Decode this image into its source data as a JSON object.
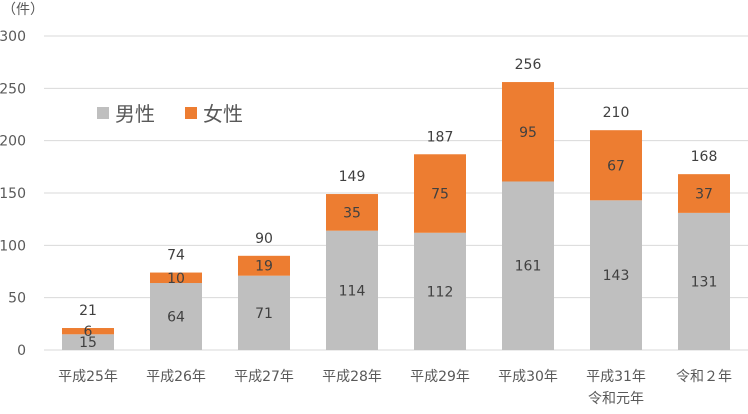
{
  "chart_data": {
    "type": "bar",
    "stacked": true,
    "y_unit_label": "（件）",
    "categories": [
      [
        "平成25年"
      ],
      [
        "平成26年"
      ],
      [
        "平成27年"
      ],
      [
        "平成28年"
      ],
      [
        "平成29年"
      ],
      [
        "平成30年"
      ],
      [
        "平成31年",
        "令和元年"
      ],
      [
        "令和２年"
      ]
    ],
    "series": [
      {
        "name": "男性",
        "color": "#bfbfbf",
        "values": [
          15,
          64,
          71,
          114,
          112,
          161,
          143,
          131
        ]
      },
      {
        "name": "女性",
        "color": "#ed7d31",
        "values": [
          6,
          10,
          19,
          35,
          75,
          95,
          67,
          37
        ]
      }
    ],
    "totals": [
      21,
      74,
      90,
      149,
      187,
      256,
      210,
      168
    ],
    "ylim": [
      0,
      300
    ],
    "yticks": [
      0,
      50,
      100,
      150,
      200,
      250,
      300
    ],
    "grid": true,
    "legend_position": "top-left"
  }
}
